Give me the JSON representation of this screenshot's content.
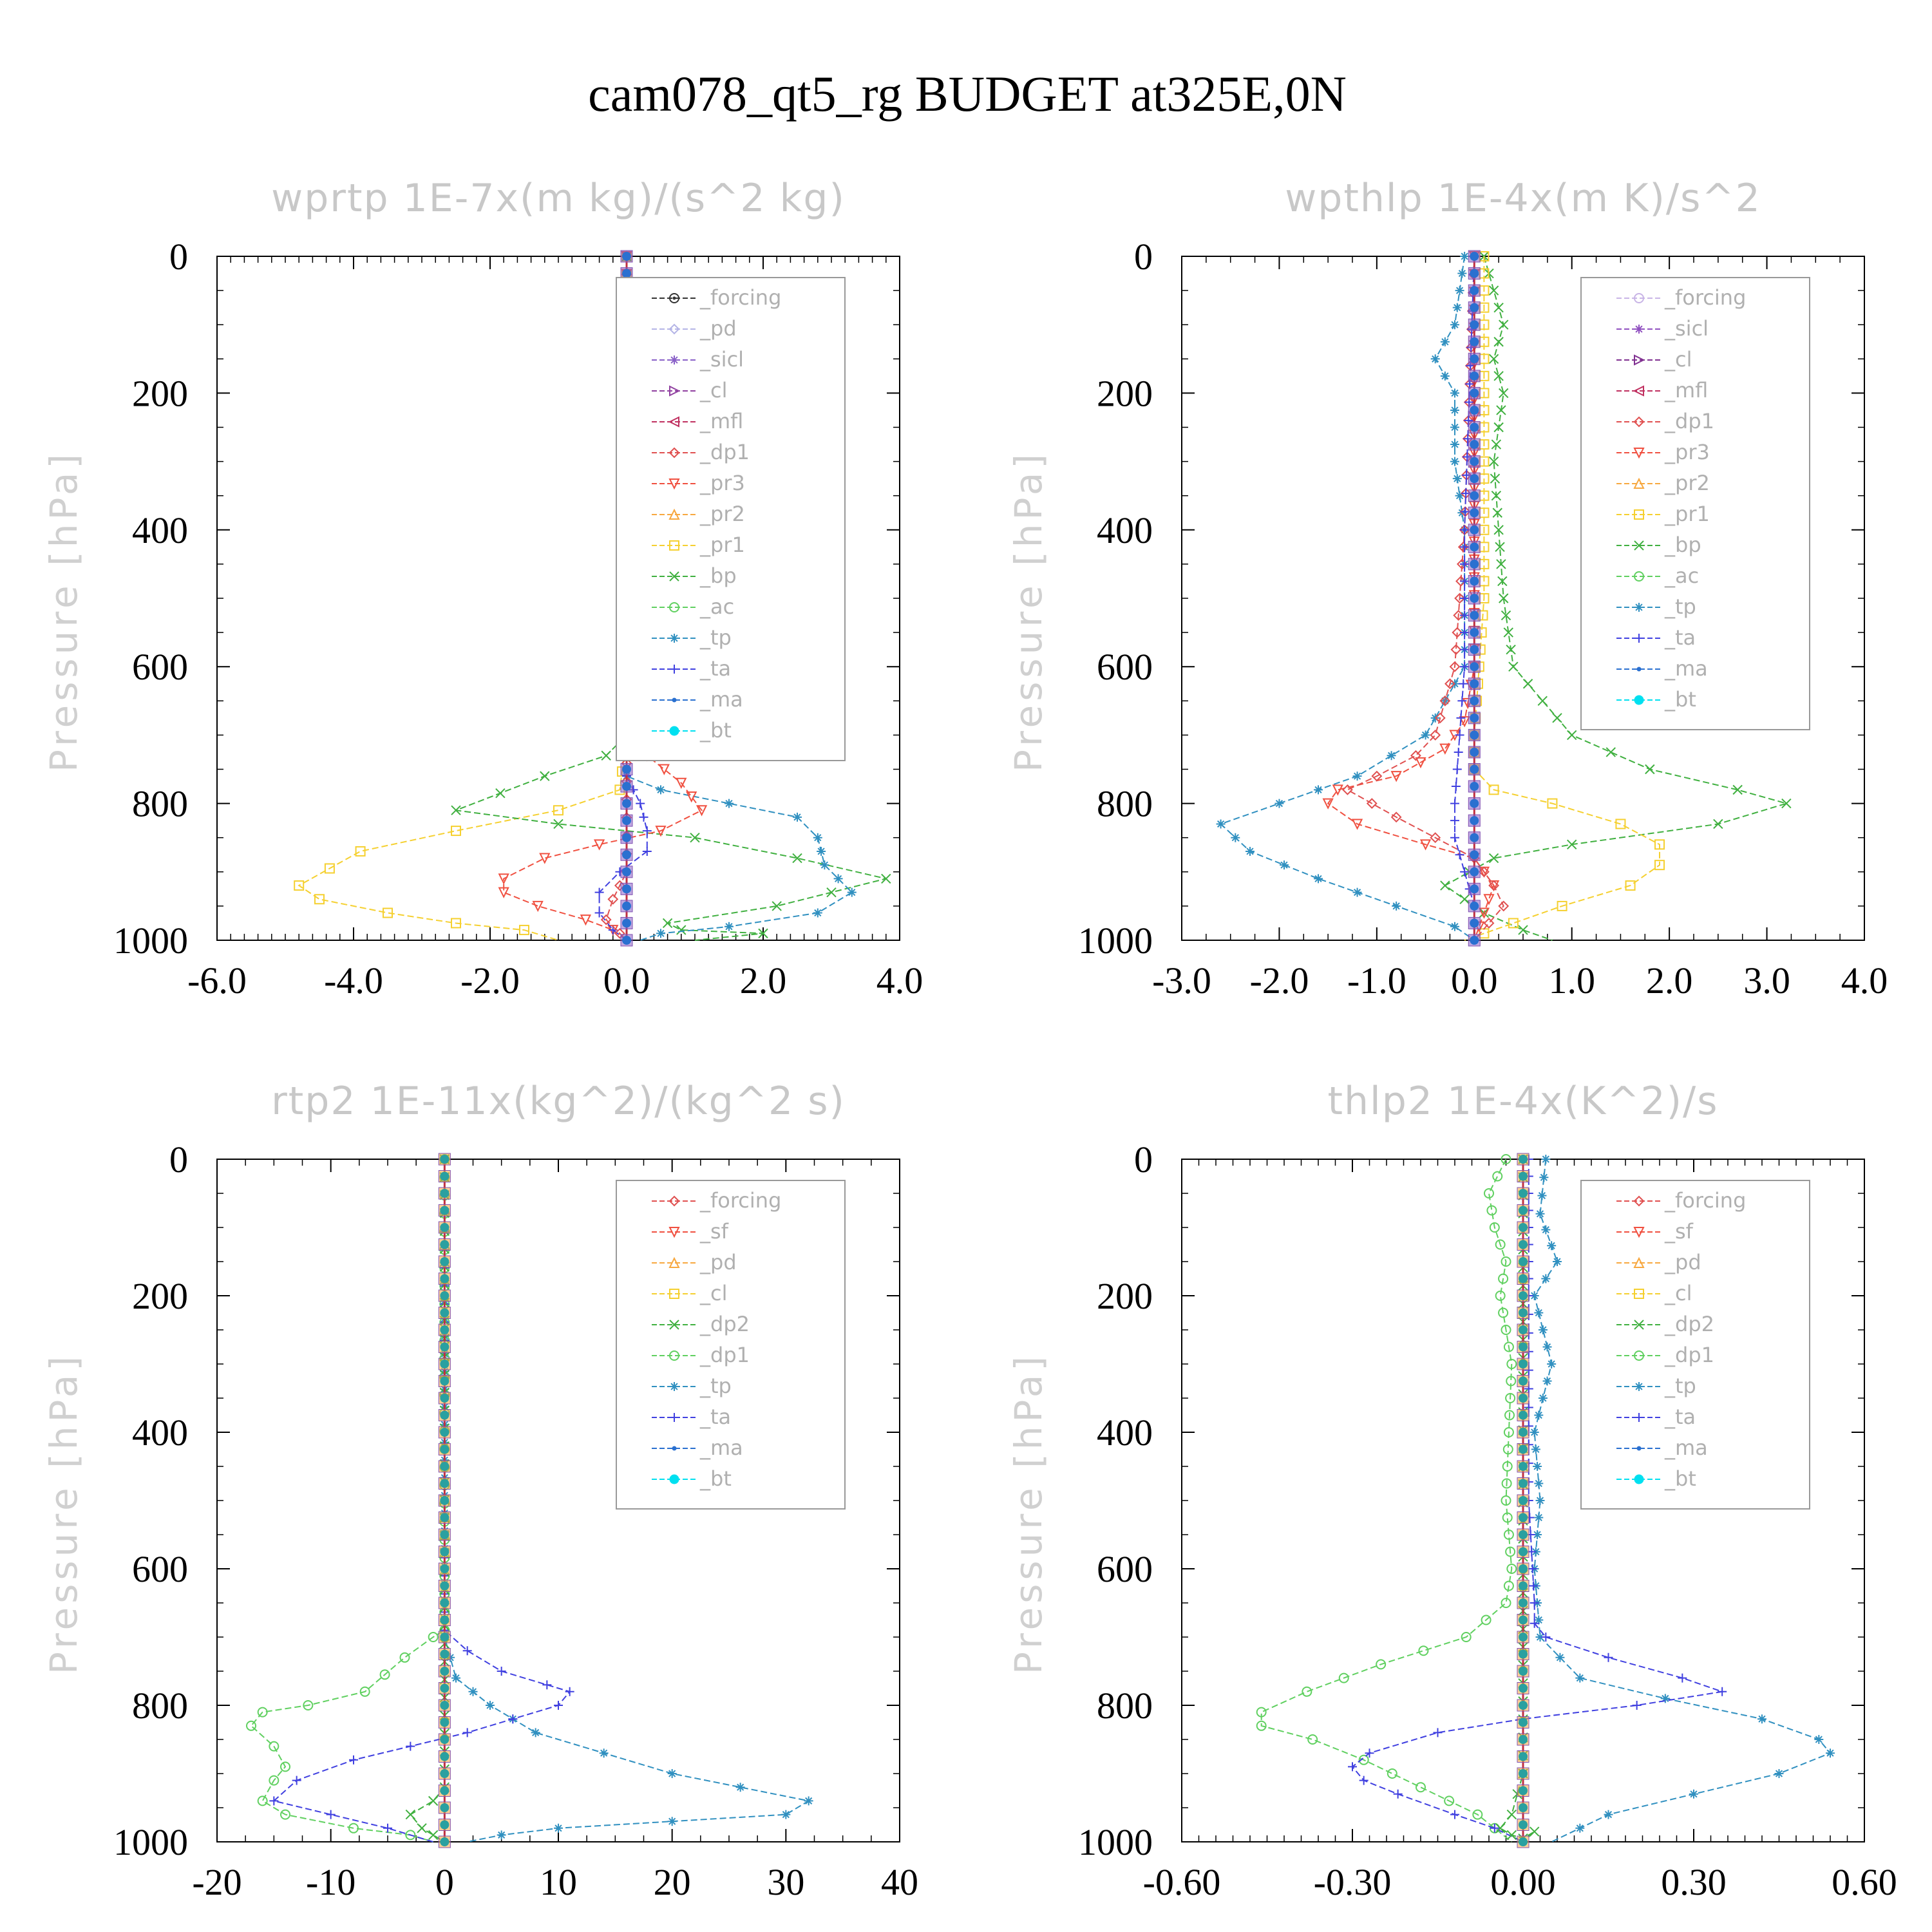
{
  "title": "cam078_qt5_rg  BUDGET at325E,0N",
  "chart_data": [
    {
      "type": "line",
      "title": "wprtp   1E-7x(m kg)/(s^2 kg)",
      "ylabel": "Pressure [hPa]",
      "xlim": [
        -6.0,
        4.0
      ],
      "ylim": [
        0,
        1000
      ],
      "x_ticks": [
        "-6.0",
        "-4.0",
        "-2.0",
        "0.0",
        "2.0",
        "4.0"
      ],
      "y_ticks": [
        "0",
        "200",
        "400",
        "600",
        "800",
        "1000"
      ],
      "legend": [
        {
          "name": "_forcing",
          "color": "#333333",
          "marker": "circle-dot"
        },
        {
          "name": "_pd",
          "color": "#b4b4e6",
          "marker": "diamond"
        },
        {
          "name": "_sicl",
          "color": "#8a60c8",
          "marker": "star"
        },
        {
          "name": "_cl",
          "color": "#9040a0",
          "marker": "tri-right"
        },
        {
          "name": "_mfl",
          "color": "#c03060",
          "marker": "tri-left"
        },
        {
          "name": "_dp1",
          "color": "#e05050",
          "marker": "diamond"
        },
        {
          "name": "_pr3",
          "color": "#f05040",
          "marker": "tri-down"
        },
        {
          "name": "_pr2",
          "color": "#f7a840",
          "marker": "tri-up"
        },
        {
          "name": "_pr1",
          "color": "#f5d030",
          "marker": "square"
        },
        {
          "name": "_bp",
          "color": "#40b040",
          "marker": "x"
        },
        {
          "name": "_ac",
          "color": "#60d060",
          "marker": "circle"
        },
        {
          "name": "_tp",
          "color": "#3090c0",
          "marker": "asterisk"
        },
        {
          "name": "_ta",
          "color": "#4040e0",
          "marker": "plus"
        },
        {
          "name": "_ma",
          "color": "#2a70d0",
          "marker": "dot"
        },
        {
          "name": "_bt",
          "color": "#00e0f0",
          "marker": "filled-circle"
        }
      ],
      "series": [
        {
          "name": "_pr1",
          "x": [
            0,
            0,
            -0.1,
            -1.0,
            -2.5,
            -3.9,
            -4.8,
            -4.5,
            -3.5,
            -2.5,
            -1.5,
            -1.0
          ],
          "y": [
            0,
            700,
            780,
            810,
            840,
            870,
            920,
            940,
            960,
            975,
            985,
            1000
          ]
        },
        {
          "name": "_bp",
          "x": [
            0,
            0,
            -0.3,
            -1.2,
            -2.5,
            -1.0,
            1.0,
            2.5,
            3.8,
            2.2,
            0.6,
            0.8,
            2.0,
            1.0
          ],
          "y": [
            0,
            700,
            730,
            760,
            810,
            830,
            850,
            880,
            910,
            950,
            975,
            985,
            990,
            1000
          ]
        },
        {
          "name": "_tp",
          "x": [
            0,
            0,
            0.5,
            1.5,
            2.5,
            2.8,
            2.9,
            3.3,
            2.8,
            1.5,
            0.5,
            0.2
          ],
          "y": [
            0,
            760,
            780,
            800,
            820,
            850,
            890,
            930,
            960,
            980,
            990,
            1000
          ]
        },
        {
          "name": "_pr3",
          "x": [
            0,
            0,
            0.3,
            0.8,
            1.1,
            0.5,
            -0.4,
            -1.2,
            -1.8,
            -1.8,
            -1.3,
            -0.6,
            -0.2,
            0
          ],
          "y": [
            0,
            700,
            730,
            770,
            810,
            840,
            860,
            880,
            910,
            930,
            950,
            970,
            985,
            1000
          ]
        },
        {
          "name": "_ta",
          "x": [
            0,
            0,
            0.2,
            0.3,
            0.3,
            -0.1,
            -0.4,
            -0.4,
            -0.2,
            0
          ],
          "y": [
            0,
            760,
            800,
            840,
            870,
            900,
            930,
            960,
            985,
            1000
          ]
        },
        {
          "name": "_dp1",
          "x": [
            0,
            0,
            -0.2,
            -0.3,
            -0.1,
            0
          ],
          "y": [
            0,
            900,
            940,
            970,
            990,
            1000
          ]
        }
      ]
    },
    {
      "type": "line",
      "title": "wpthlp   1E-4x(m K)/s^2",
      "ylabel": "Pressure [hPa]",
      "xlim": [
        -3.0,
        4.0
      ],
      "ylim": [
        0,
        1000
      ],
      "x_ticks": [
        "-3.0",
        "-2.0",
        "-1.0",
        "0.0",
        "1.0",
        "2.0",
        "3.0",
        "4.0"
      ],
      "y_ticks": [
        "0",
        "200",
        "400",
        "600",
        "800",
        "1000"
      ],
      "legend": [
        {
          "name": "_forcing",
          "color": "#c8b4e6",
          "marker": "circle"
        },
        {
          "name": "_sicl",
          "color": "#9050c0",
          "marker": "star"
        },
        {
          "name": "_cl",
          "color": "#803090",
          "marker": "tri-right"
        },
        {
          "name": "_mfl",
          "color": "#c03060",
          "marker": "tri-left"
        },
        {
          "name": "_dp1",
          "color": "#e05050",
          "marker": "diamond"
        },
        {
          "name": "_pr3",
          "color": "#f05040",
          "marker": "tri-down"
        },
        {
          "name": "_pr2",
          "color": "#f7a840",
          "marker": "tri-up"
        },
        {
          "name": "_pr1",
          "color": "#f5d030",
          "marker": "square"
        },
        {
          "name": "_bp",
          "color": "#40b040",
          "marker": "x"
        },
        {
          "name": "_ac",
          "color": "#60d060",
          "marker": "circle"
        },
        {
          "name": "_tp",
          "color": "#3090c0",
          "marker": "asterisk"
        },
        {
          "name": "_ta",
          "color": "#4040e0",
          "marker": "plus"
        },
        {
          "name": "_ma",
          "color": "#2a70d0",
          "marker": "dot"
        },
        {
          "name": "_bt",
          "color": "#00e0f0",
          "marker": "filled-circle"
        }
      ],
      "series": [
        {
          "name": "_bp",
          "x": [
            0.1,
            0.3,
            0.2,
            0.3,
            0.2,
            0.25,
            0.3,
            0.4,
            1.0,
            1.8,
            2.7,
            3.2,
            2.5,
            1.0,
            0.2,
            -0.3,
            0.1,
            0.5,
            0.8
          ],
          "y": [
            0,
            100,
            150,
            200,
            300,
            400,
            500,
            600,
            700,
            750,
            780,
            800,
            830,
            860,
            880,
            920,
            960,
            985,
            1000
          ]
        },
        {
          "name": "_tp",
          "x": [
            -0.1,
            -0.2,
            -0.4,
            -0.2,
            -0.2,
            -0.1,
            -0.1,
            -0.1,
            -0.5,
            -1.2,
            -2.0,
            -2.6,
            -2.3,
            -1.6,
            -0.8,
            -0.2,
            0
          ],
          "y": [
            0,
            100,
            150,
            200,
            300,
            400,
            500,
            600,
            700,
            760,
            800,
            830,
            870,
            910,
            950,
            980,
            1000
          ]
        },
        {
          "name": "_pr1",
          "x": [
            0.1,
            0.1,
            0.1,
            0.1,
            0,
            0,
            0.2,
            0.8,
            1.5,
            1.9,
            1.9,
            1.6,
            0.9,
            0.4,
            0.1,
            -0.1
          ],
          "y": [
            0,
            100,
            300,
            500,
            700,
            750,
            780,
            800,
            830,
            860,
            890,
            920,
            950,
            975,
            990,
            1000
          ]
        },
        {
          "name": "_pr3",
          "x": [
            0,
            0,
            -0.1,
            -0.3,
            -0.8,
            -1.4,
            -1.5,
            -1.2,
            -0.5,
            0,
            0.2,
            0.1,
            0
          ],
          "y": [
            0,
            600,
            680,
            720,
            760,
            780,
            800,
            830,
            860,
            880,
            920,
            960,
            1000
          ]
        },
        {
          "name": "_dp1",
          "x": [
            0,
            -0.1,
            -0.2,
            -0.3,
            -0.4,
            -0.6,
            -1.0,
            -1.3,
            -0.8,
            0,
            0.2,
            0.3,
            0
          ],
          "y": [
            0,
            400,
            600,
            650,
            700,
            730,
            760,
            780,
            820,
            880,
            920,
            950,
            1000
          ]
        },
        {
          "name": "_ta",
          "x": [
            0,
            -0.1,
            -0.1,
            -0.2,
            -0.2,
            -0.1,
            0,
            0
          ],
          "y": [
            0,
            400,
            600,
            800,
            850,
            900,
            950,
            1000
          ]
        }
      ]
    },
    {
      "type": "line",
      "title": "rtp2   1E-11x(kg^2)/(kg^2 s)",
      "ylabel": "Pressure [hPa]",
      "xlim": [
        -20,
        40
      ],
      "ylim": [
        0,
        1000
      ],
      "x_ticks": [
        "-20",
        "-10",
        "0",
        "10",
        "20",
        "30",
        "40"
      ],
      "y_ticks": [
        "0",
        "200",
        "400",
        "600",
        "800",
        "1000"
      ],
      "legend": [
        {
          "name": "_forcing",
          "color": "#e05050",
          "marker": "diamond"
        },
        {
          "name": "_sf",
          "color": "#f05040",
          "marker": "tri-down"
        },
        {
          "name": "_pd",
          "color": "#f7a840",
          "marker": "tri-up"
        },
        {
          "name": "_cl",
          "color": "#f5d030",
          "marker": "square"
        },
        {
          "name": "_dp2",
          "color": "#40b040",
          "marker": "x"
        },
        {
          "name": "_dp1",
          "color": "#60d060",
          "marker": "circle"
        },
        {
          "name": "_tp",
          "color": "#3090c0",
          "marker": "asterisk"
        },
        {
          "name": "_ta",
          "color": "#4040e0",
          "marker": "plus"
        },
        {
          "name": "_ma",
          "color": "#2a70d0",
          "marker": "dot"
        },
        {
          "name": "_bt",
          "color": "#00e0f0",
          "marker": "filled-circle"
        }
      ],
      "series": [
        {
          "name": "_dp1",
          "x": [
            0,
            0,
            -1,
            -3.5,
            -7,
            -12,
            -16,
            -17,
            -15,
            -14,
            -15,
            -16,
            -14,
            -8,
            -3,
            -1
          ],
          "y": [
            0,
            690,
            700,
            730,
            780,
            800,
            810,
            830,
            860,
            890,
            910,
            940,
            960,
            980,
            990,
            1000
          ]
        },
        {
          "name": "_tp",
          "x": [
            0,
            0,
            1,
            4,
            8,
            14,
            20,
            26,
            32,
            30,
            20,
            10,
            5,
            2
          ],
          "y": [
            0,
            700,
            760,
            800,
            840,
            870,
            900,
            920,
            940,
            960,
            970,
            980,
            990,
            1000
          ]
        },
        {
          "name": "_ta",
          "x": [
            0,
            0,
            2,
            5,
            9,
            11,
            10,
            6,
            2,
            -3,
            -8,
            -13,
            -15,
            -10,
            -5,
            -1
          ],
          "y": [
            0,
            690,
            720,
            750,
            770,
            780,
            800,
            820,
            840,
            860,
            880,
            910,
            940,
            960,
            980,
            1000
          ]
        },
        {
          "name": "_dp2",
          "x": [
            0,
            0,
            -1,
            -3,
            -2,
            -1,
            0
          ],
          "y": [
            0,
            920,
            940,
            960,
            980,
            990,
            1000
          ]
        }
      ]
    },
    {
      "type": "line",
      "title": "thlp2   1E-4x(K^2)/s",
      "ylabel": "Pressure [hPa]",
      "xlim": [
        -0.6,
        0.6
      ],
      "ylim": [
        0,
        1000
      ],
      "x_ticks": [
        "-0.60",
        "-0.30",
        "0.00",
        "0.30",
        "0.60"
      ],
      "y_ticks": [
        "0",
        "200",
        "400",
        "600",
        "800",
        "1000"
      ],
      "legend": [
        {
          "name": "_forcing",
          "color": "#e05050",
          "marker": "diamond"
        },
        {
          "name": "_sf",
          "color": "#f05040",
          "marker": "tri-down"
        },
        {
          "name": "_pd",
          "color": "#f7a840",
          "marker": "tri-up"
        },
        {
          "name": "_cl",
          "color": "#f5d030",
          "marker": "square"
        },
        {
          "name": "_dp2",
          "color": "#40b040",
          "marker": "x"
        },
        {
          "name": "_dp1",
          "color": "#60d060",
          "marker": "circle"
        },
        {
          "name": "_tp",
          "color": "#3090c0",
          "marker": "asterisk"
        },
        {
          "name": "_ta",
          "color": "#4040e0",
          "marker": "plus"
        },
        {
          "name": "_ma",
          "color": "#2a70d0",
          "marker": "dot"
        },
        {
          "name": "_bt",
          "color": "#00e0f0",
          "marker": "filled-circle"
        }
      ],
      "series": [
        {
          "name": "_dp1",
          "x": [
            -0.03,
            -0.06,
            -0.05,
            -0.03,
            -0.04,
            -0.02,
            -0.03,
            -0.02,
            -0.03,
            -0.1,
            -0.25,
            -0.38,
            -0.46,
            -0.46,
            -0.37,
            -0.28,
            -0.18,
            -0.08,
            -0.02
          ],
          "y": [
            0,
            50,
            100,
            150,
            200,
            300,
            500,
            600,
            650,
            700,
            740,
            780,
            810,
            830,
            850,
            880,
            920,
            960,
            1000
          ]
        },
        {
          "name": "_tp",
          "x": [
            0.04,
            0.03,
            0.06,
            0.02,
            0.05,
            0.02,
            0.03,
            0.02,
            0.03,
            0.1,
            0.25,
            0.42,
            0.52,
            0.54,
            0.45,
            0.3,
            0.15,
            0.05
          ],
          "y": [
            0,
            80,
            150,
            200,
            300,
            400,
            500,
            600,
            700,
            760,
            790,
            820,
            850,
            870,
            900,
            930,
            960,
            1000
          ]
        },
        {
          "name": "_ta",
          "x": [
            0.01,
            0.01,
            0.01,
            0.02,
            0.02,
            0.04,
            0.15,
            0.28,
            0.35,
            0.2,
            0.0,
            -0.15,
            -0.27,
            -0.3,
            -0.28,
            -0.22,
            -0.12,
            -0.05,
            0
          ],
          "y": [
            0,
            200,
            500,
            650,
            680,
            700,
            730,
            760,
            780,
            800,
            820,
            840,
            870,
            890,
            910,
            930,
            960,
            980,
            1000
          ]
        },
        {
          "name": "_dp2",
          "x": [
            0,
            0,
            -0.02,
            -0.04,
            -0.02,
            0,
            0.02,
            0
          ],
          "y": [
            0,
            900,
            960,
            980,
            990,
            995,
            985,
            1000
          ]
        }
      ]
    }
  ]
}
